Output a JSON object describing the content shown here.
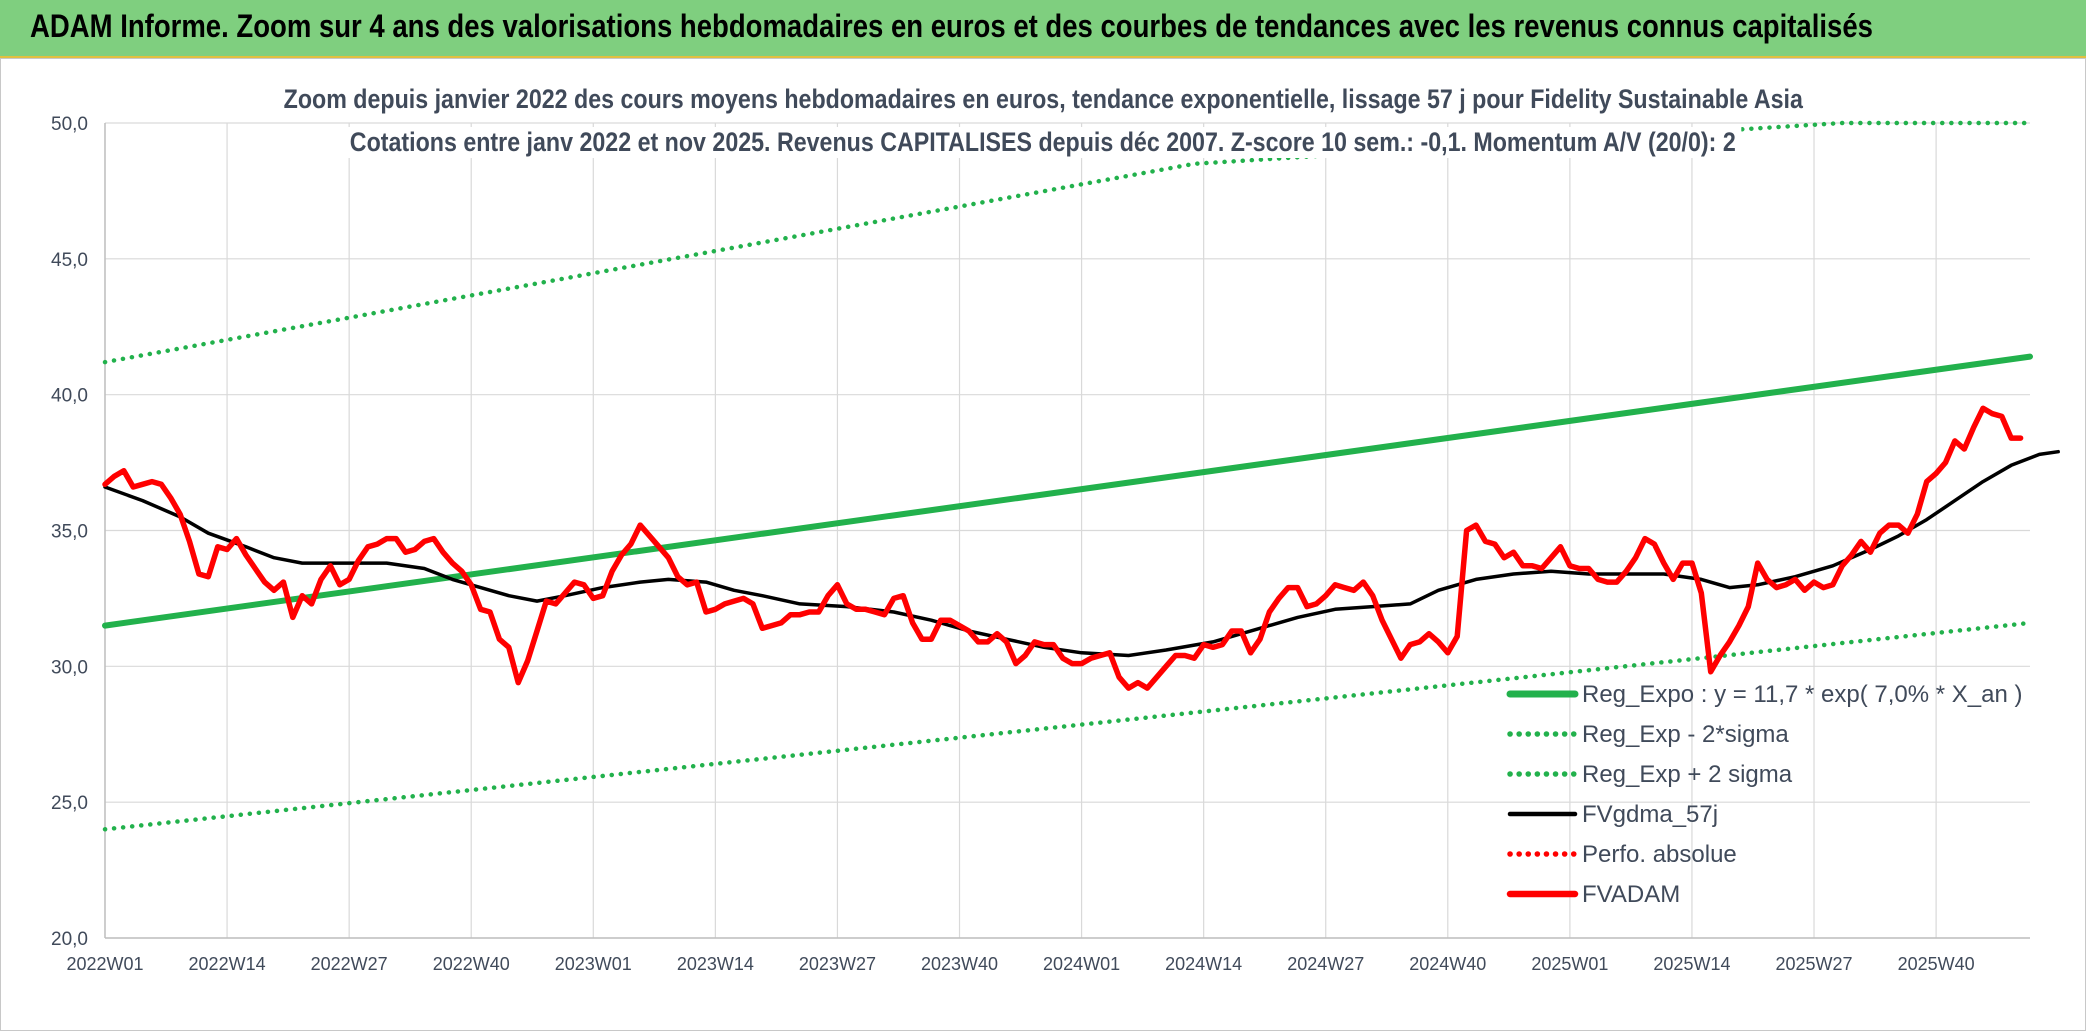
{
  "header": {
    "title": "ADAM Informe. Zoom sur 4 ans des valorisations hebdomadaires en euros et des courbes de tendances avec les revenus connus capitalisés"
  },
  "chart_data": {
    "type": "line",
    "title": "Zoom depuis janvier 2022 des cours moyens hebdomadaires en euros, tendance exponentielle, lissage 57 j pour Fidelity Sustainable Asia",
    "subtitle": "Cotations entre janv 2022 et nov 2025. Revenus CAPITALISES depuis déc 2007. Z-score 10 sem.: -0,1. Momentum A/V (20/0): 2",
    "ylim": [
      20,
      50
    ],
    "y_ticks": [
      "20,0",
      "25,0",
      "30,0",
      "35,0",
      "40,0",
      "45,0",
      "50,0"
    ],
    "x_ticks": [
      {
        "label": "2022W01",
        "week": 0
      },
      {
        "label": "2022W14",
        "week": 13
      },
      {
        "label": "2022W27",
        "week": 26
      },
      {
        "label": "2022W40",
        "week": 39
      },
      {
        "label": "2023W01",
        "week": 52
      },
      {
        "label": "2023W14",
        "week": 65
      },
      {
        "label": "2023W27",
        "week": 78
      },
      {
        "label": "2023W40",
        "week": 91
      },
      {
        "label": "2024W01",
        "week": 104
      },
      {
        "label": "2024W14",
        "week": 117
      },
      {
        "label": "2024W27",
        "week": 130
      },
      {
        "label": "2024W40",
        "week": 143
      },
      {
        "label": "2025W01",
        "week": 156
      },
      {
        "label": "2025W14",
        "week": 169
      },
      {
        "label": "2025W27",
        "week": 182
      },
      {
        "label": "2025W40",
        "week": 195
      }
    ],
    "x_max_week": 205,
    "grid": true,
    "legend_position": "bottom-right",
    "series": [
      {
        "name": "Reg_Expo : y = 11,7 * exp( 7,0% *  X_an )",
        "color": "#22b14c",
        "style": "solid",
        "points": [
          [
            0,
            31.5
          ],
          [
            205,
            41.4
          ]
        ]
      },
      {
        "name": "Reg_Exp - 2*sigma",
        "color": "#22b14c",
        "style": "dotted",
        "points": [
          [
            0,
            24.0
          ],
          [
            205,
            31.6
          ]
        ]
      },
      {
        "name": "Reg_Exp + 2 sigma",
        "color": "#22b14c",
        "style": "dotted",
        "points": [
          [
            0,
            41.2
          ],
          [
            116,
            48.5
          ],
          [
            185,
            50.0
          ],
          [
            205,
            50.0
          ]
        ]
      },
      {
        "name": "FVgdma_57j",
        "color": "#000000",
        "style": "solid",
        "points": [
          [
            0,
            36.6
          ],
          [
            4,
            36.1
          ],
          [
            8,
            35.5
          ],
          [
            11,
            34.9
          ],
          [
            15,
            34.4
          ],
          [
            18,
            34.0
          ],
          [
            21,
            33.8
          ],
          [
            25,
            33.8
          ],
          [
            30,
            33.8
          ],
          [
            34,
            33.6
          ],
          [
            37,
            33.2
          ],
          [
            40,
            32.9
          ],
          [
            43,
            32.6
          ],
          [
            46,
            32.4
          ],
          [
            49,
            32.6
          ],
          [
            53,
            32.9
          ],
          [
            57,
            33.1
          ],
          [
            60,
            33.2
          ],
          [
            64,
            33.1
          ],
          [
            67,
            32.8
          ],
          [
            70,
            32.6
          ],
          [
            74,
            32.3
          ],
          [
            79,
            32.2
          ],
          [
            84,
            32.0
          ],
          [
            88,
            31.7
          ],
          [
            92,
            31.3
          ],
          [
            96,
            31.0
          ],
          [
            100,
            30.7
          ],
          [
            104,
            30.5
          ],
          [
            109,
            30.4
          ],
          [
            113,
            30.6
          ],
          [
            118,
            30.9
          ],
          [
            123,
            31.4
          ],
          [
            127,
            31.8
          ],
          [
            131,
            32.1
          ],
          [
            135,
            32.2
          ],
          [
            139,
            32.3
          ],
          [
            142,
            32.8
          ],
          [
            146,
            33.2
          ],
          [
            150,
            33.4
          ],
          [
            154,
            33.5
          ],
          [
            158,
            33.4
          ],
          [
            162,
            33.4
          ],
          [
            166,
            33.4
          ],
          [
            170,
            33.2
          ],
          [
            173,
            32.9
          ],
          [
            176,
            33.0
          ],
          [
            180,
            33.3
          ],
          [
            184,
            33.7
          ],
          [
            188,
            34.3
          ],
          [
            191,
            34.8
          ],
          [
            194,
            35.4
          ],
          [
            197,
            36.1
          ],
          [
            200,
            36.8
          ],
          [
            203,
            37.4
          ],
          [
            206,
            37.8
          ],
          [
            208,
            37.9
          ]
        ]
      },
      {
        "name": "Perfo. absolue",
        "color": "#ff0000",
        "style": "dotted",
        "points": []
      },
      {
        "name": "FVADAM",
        "color": "#ff0000",
        "style": "solid",
        "points": [
          [
            0,
            36.7
          ],
          [
            1,
            37.0
          ],
          [
            2,
            37.2
          ],
          [
            3,
            36.6
          ],
          [
            4,
            36.7
          ],
          [
            5,
            36.8
          ],
          [
            6,
            36.7
          ],
          [
            7,
            36.2
          ],
          [
            8,
            35.6
          ],
          [
            9,
            34.6
          ],
          [
            10,
            33.4
          ],
          [
            11,
            33.3
          ],
          [
            12,
            34.4
          ],
          [
            13,
            34.3
          ],
          [
            14,
            34.7
          ],
          [
            15,
            34.1
          ],
          [
            16,
            33.6
          ],
          [
            17,
            33.1
          ],
          [
            18,
            32.8
          ],
          [
            19,
            33.1
          ],
          [
            20,
            31.8
          ],
          [
            21,
            32.6
          ],
          [
            22,
            32.3
          ],
          [
            23,
            33.2
          ],
          [
            24,
            33.7
          ],
          [
            25,
            33.0
          ],
          [
            26,
            33.2
          ],
          [
            27,
            33.9
          ],
          [
            28,
            34.4
          ],
          [
            29,
            34.5
          ],
          [
            30,
            34.7
          ],
          [
            31,
            34.7
          ],
          [
            32,
            34.2
          ],
          [
            33,
            34.3
          ],
          [
            34,
            34.6
          ],
          [
            35,
            34.7
          ],
          [
            36,
            34.2
          ],
          [
            37,
            33.8
          ],
          [
            38,
            33.5
          ],
          [
            39,
            33.0
          ],
          [
            40,
            32.1
          ],
          [
            41,
            32.0
          ],
          [
            42,
            31.0
          ],
          [
            43,
            30.7
          ],
          [
            44,
            29.4
          ],
          [
            45,
            30.2
          ],
          [
            46,
            31.3
          ],
          [
            47,
            32.4
          ],
          [
            48,
            32.3
          ],
          [
            49,
            32.7
          ],
          [
            50,
            33.1
          ],
          [
            51,
            33.0
          ],
          [
            52,
            32.5
          ],
          [
            53,
            32.6
          ],
          [
            54,
            33.5
          ],
          [
            55,
            34.1
          ],
          [
            56,
            34.5
          ],
          [
            57,
            35.2
          ],
          [
            58,
            34.8
          ],
          [
            59,
            34.4
          ],
          [
            60,
            34.0
          ],
          [
            61,
            33.3
          ],
          [
            62,
            33.0
          ],
          [
            63,
            33.1
          ],
          [
            64,
            32.0
          ],
          [
            65,
            32.1
          ],
          [
            66,
            32.3
          ],
          [
            67,
            32.4
          ],
          [
            68,
            32.5
          ],
          [
            69,
            32.3
          ],
          [
            70,
            31.4
          ],
          [
            71,
            31.5
          ],
          [
            72,
            31.6
          ],
          [
            73,
            31.9
          ],
          [
            74,
            31.9
          ],
          [
            75,
            32.0
          ],
          [
            76,
            32.0
          ],
          [
            77,
            32.6
          ],
          [
            78,
            33.0
          ],
          [
            79,
            32.3
          ],
          [
            80,
            32.1
          ],
          [
            81,
            32.1
          ],
          [
            82,
            32.0
          ],
          [
            83,
            31.9
          ],
          [
            84,
            32.5
          ],
          [
            85,
            32.6
          ],
          [
            86,
            31.6
          ],
          [
            87,
            31.0
          ],
          [
            88,
            31.0
          ],
          [
            89,
            31.7
          ],
          [
            90,
            31.7
          ],
          [
            91,
            31.5
          ],
          [
            92,
            31.3
          ],
          [
            93,
            30.9
          ],
          [
            94,
            30.9
          ],
          [
            95,
            31.2
          ],
          [
            96,
            30.9
          ],
          [
            97,
            30.1
          ],
          [
            98,
            30.4
          ],
          [
            99,
            30.9
          ],
          [
            100,
            30.8
          ],
          [
            101,
            30.8
          ],
          [
            102,
            30.3
          ],
          [
            103,
            30.1
          ],
          [
            104,
            30.1
          ],
          [
            105,
            30.3
          ],
          [
            106,
            30.4
          ],
          [
            107,
            30.5
          ],
          [
            108,
            29.6
          ],
          [
            109,
            29.2
          ],
          [
            110,
            29.4
          ],
          [
            111,
            29.2
          ],
          [
            112,
            29.6
          ],
          [
            113,
            30.0
          ],
          [
            114,
            30.4
          ],
          [
            115,
            30.4
          ],
          [
            116,
            30.3
          ],
          [
            117,
            30.8
          ],
          [
            118,
            30.7
          ],
          [
            119,
            30.8
          ],
          [
            120,
            31.3
          ],
          [
            121,
            31.3
          ],
          [
            122,
            30.5
          ],
          [
            123,
            31.0
          ],
          [
            124,
            32.0
          ],
          [
            125,
            32.5
          ],
          [
            126,
            32.9
          ],
          [
            127,
            32.9
          ],
          [
            128,
            32.2
          ],
          [
            129,
            32.3
          ],
          [
            130,
            32.6
          ],
          [
            131,
            33.0
          ],
          [
            132,
            32.9
          ],
          [
            133,
            32.8
          ],
          [
            134,
            33.1
          ],
          [
            135,
            32.6
          ],
          [
            136,
            31.7
          ],
          [
            137,
            31.0
          ],
          [
            138,
            30.3
          ],
          [
            139,
            30.8
          ],
          [
            140,
            30.9
          ],
          [
            141,
            31.2
          ],
          [
            142,
            30.9
          ],
          [
            143,
            30.5
          ],
          [
            144,
            31.1
          ],
          [
            145,
            35.0
          ],
          [
            146,
            35.2
          ],
          [
            147,
            34.6
          ],
          [
            148,
            34.5
          ],
          [
            149,
            34.0
          ],
          [
            150,
            34.2
          ],
          [
            151,
            33.7
          ],
          [
            152,
            33.7
          ],
          [
            153,
            33.6
          ],
          [
            154,
            34.0
          ],
          [
            155,
            34.4
          ],
          [
            156,
            33.7
          ],
          [
            157,
            33.6
          ],
          [
            158,
            33.6
          ],
          [
            159,
            33.2
          ],
          [
            160,
            33.1
          ],
          [
            161,
            33.1
          ],
          [
            162,
            33.5
          ],
          [
            163,
            34.0
          ],
          [
            164,
            34.7
          ],
          [
            165,
            34.5
          ],
          [
            166,
            33.8
          ],
          [
            167,
            33.2
          ],
          [
            168,
            33.8
          ],
          [
            169,
            33.8
          ],
          [
            170,
            32.7
          ],
          [
            171,
            29.8
          ],
          [
            172,
            30.4
          ],
          [
            173,
            30.9
          ],
          [
            174,
            31.5
          ],
          [
            175,
            32.2
          ],
          [
            176,
            33.8
          ],
          [
            177,
            33.2
          ],
          [
            178,
            32.9
          ],
          [
            179,
            33.0
          ],
          [
            180,
            33.2
          ],
          [
            181,
            32.8
          ],
          [
            182,
            33.1
          ],
          [
            183,
            32.9
          ],
          [
            184,
            33.0
          ],
          [
            185,
            33.7
          ],
          [
            186,
            34.1
          ],
          [
            187,
            34.6
          ],
          [
            188,
            34.2
          ],
          [
            189,
            34.9
          ],
          [
            190,
            35.2
          ],
          [
            191,
            35.2
          ],
          [
            192,
            34.9
          ],
          [
            193,
            35.6
          ],
          [
            194,
            36.8
          ],
          [
            195,
            37.1
          ],
          [
            196,
            37.5
          ],
          [
            197,
            38.3
          ],
          [
            198,
            38.0
          ],
          [
            199,
            38.8
          ],
          [
            200,
            39.5
          ],
          [
            201,
            39.3
          ],
          [
            202,
            39.2
          ],
          [
            203,
            38.4
          ],
          [
            204,
            38.4
          ]
        ]
      }
    ]
  }
}
